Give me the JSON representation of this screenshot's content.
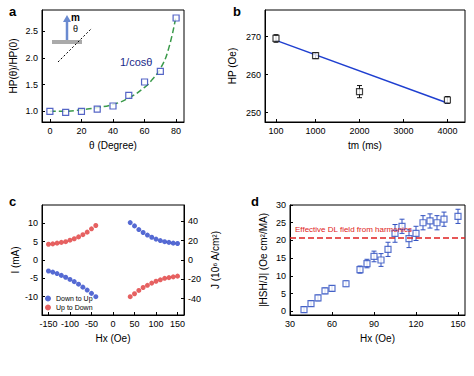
{
  "chart_data": [
    {
      "type": "scatter",
      "title": "a",
      "xlabel": "θ (Degree)",
      "ylabel": "HP(θ)/HP(0)",
      "xlim": [
        -5,
        85
      ],
      "xticks": [
        0,
        20,
        40,
        60,
        80
      ],
      "ylim": [
        0.8,
        2.9
      ],
      "yticks": [
        {
          "value": 1,
          "label": "1.0"
        },
        1.5,
        {
          "value": 2,
          "label": "2.0"
        },
        2.5
      ],
      "grid": false,
      "annotations": [
        "1/cosθ",
        "m",
        "θ"
      ],
      "series": [
        {
          "type": "scatter",
          "color": "#2a3fb8",
          "marker": "open_square",
          "x": [
            0,
            10,
            20,
            30,
            40,
            50,
            60,
            70,
            80
          ],
          "values": [
            1.0,
            0.98,
            1.0,
            1.04,
            1.1,
            1.3,
            1.55,
            1.75,
            2.75
          ]
        },
        {
          "type": "line",
          "color": "#3a9a4a",
          "line_style": "dashed",
          "x": [
            0,
            10,
            20,
            30,
            40,
            50,
            60,
            65,
            70,
            75,
            80
          ],
          "values": [
            1.0,
            1.0,
            1.03,
            1.07,
            1.13,
            1.25,
            1.45,
            1.6,
            1.8,
            2.15,
            2.8
          ]
        }
      ]
    },
    {
      "type": "scatter",
      "title": "b",
      "xlabel": "tm (ms)",
      "ylabel": "HP (Oe)",
      "xlim": [
        -150,
        4400
      ],
      "xticks": [
        100,
        1000,
        2000,
        3000,
        4000
      ],
      "ylim": [
        247.5,
        277
      ],
      "yticks": [
        250,
        260,
        270
      ],
      "grid": false,
      "series": [
        {
          "type": "scatter",
          "color": "#111111",
          "marker": "open_square",
          "x": [
            100,
            1000,
            2000,
            4000
          ],
          "values": [
            269.5,
            265.0,
            255.5,
            253.3
          ],
          "errors": [
            1.0,
            0.8,
            1.6,
            0.9
          ]
        },
        {
          "type": "line",
          "color": "#1f3fd0",
          "line_style": "solid",
          "x": [
            100,
            4000
          ],
          "values": [
            269.0,
            252.5
          ]
        }
      ]
    },
    {
      "type": "scatter",
      "title": "c",
      "xlabel": "Hx (Oe)",
      "ylabel": "I (mA)",
      "y2label": "J (10⁶ A/cm²)",
      "xlim": [
        -165,
        165
      ],
      "xticks": [
        -150,
        -100,
        -50,
        0,
        50,
        100,
        150
      ],
      "ylim": [
        -15,
        15
      ],
      "yticks": [
        -10,
        -5,
        0,
        5,
        10
      ],
      "y2lim": [
        -57,
        57
      ],
      "y2ticks": [
        -40,
        -20,
        0,
        20,
        40
      ],
      "grid": false,
      "legend": "lower left",
      "series": [
        {
          "name": "Down to Up",
          "type": "scatter",
          "color": "#2a45c8",
          "marker": "circle",
          "x": [
            -150,
            -140,
            -130,
            -120,
            -110,
            -100,
            -90,
            -80,
            -70,
            -60,
            -50,
            -40,
            40,
            50,
            60,
            70,
            80,
            90,
            100,
            110,
            120,
            130,
            140,
            150
          ],
          "values": [
            -3.0,
            -3.3,
            -3.7,
            -4.2,
            -4.7,
            -5.3,
            -5.9,
            -6.6,
            -7.4,
            -8.2,
            -9.1,
            -10.0,
            10.2,
            9.3,
            8.3,
            7.5,
            6.8,
            6.2,
            5.7,
            5.3,
            5.0,
            4.8,
            4.6,
            4.5
          ]
        },
        {
          "name": "Up to Down",
          "type": "scatter",
          "color": "#e03a3a",
          "marker": "circle",
          "x": [
            -150,
            -140,
            -130,
            -120,
            -110,
            -100,
            -90,
            -80,
            -70,
            -60,
            -50,
            -40,
            40,
            50,
            60,
            70,
            80,
            90,
            100,
            110,
            120,
            130,
            140,
            150
          ],
          "values": [
            4.3,
            4.4,
            4.6,
            4.8,
            5.0,
            5.4,
            5.8,
            6.3,
            6.9,
            7.6,
            8.5,
            9.4,
            -10.0,
            -9.2,
            -8.3,
            -7.5,
            -6.9,
            -6.3,
            -5.8,
            -5.4,
            -5.0,
            -4.8,
            -4.6,
            -4.4
          ]
        }
      ]
    },
    {
      "type": "scatter",
      "title": "d",
      "xlabel": "Hx (Oe)",
      "ylabel": "|HSH/J| (Oe cm²/MA)",
      "xlim": [
        30,
        155
      ],
      "xticks": [
        30,
        60,
        90,
        120,
        150
      ],
      "ylim": [
        -1,
        30
      ],
      "yticks": [
        0,
        5,
        10,
        15,
        20,
        25,
        30
      ],
      "grid": false,
      "reference_line": {
        "value": 20.7,
        "label": "Effective DL field from harmonics",
        "color": "#e02020",
        "line_style": "dashed"
      },
      "series": [
        {
          "type": "scatter",
          "color": "#3050c0",
          "marker": "open_square",
          "x": [
            40,
            45,
            50,
            55,
            60,
            70,
            80,
            85,
            90,
            95,
            100,
            105,
            110,
            115,
            120,
            125,
            130,
            135,
            140,
            150
          ],
          "values": [
            0.5,
            2.2,
            3.8,
            5.8,
            6.5,
            7.8,
            11.8,
            13.5,
            15.5,
            14.5,
            17.5,
            22.0,
            24.0,
            20.5,
            22.0,
            25.0,
            25.5,
            25.0,
            26.0,
            26.8
          ],
          "errors": [
            0.8,
            0.8,
            0.8,
            0.8,
            0.8,
            0.8,
            1.0,
            1.2,
            1.5,
            1.8,
            2.0,
            2.5,
            2.0,
            2.5,
            2.0,
            2.0,
            2.0,
            2.0,
            2.0,
            2.0
          ]
        }
      ]
    }
  ]
}
